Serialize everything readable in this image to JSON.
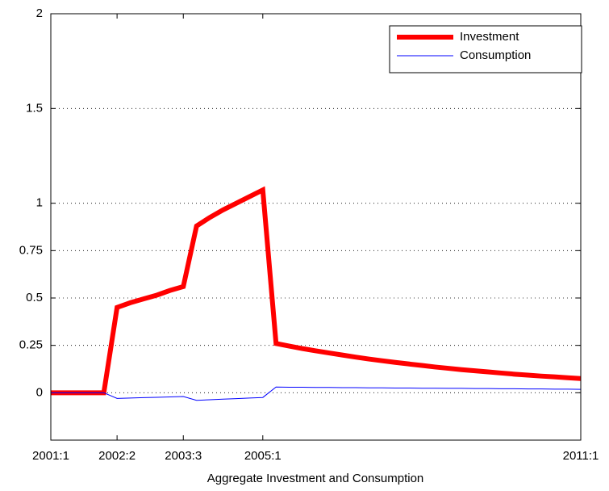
{
  "chart_data": {
    "type": "line",
    "xlabel": "Aggregate Investment and Consumption",
    "categories": [
      "2001:1",
      null,
      null,
      null,
      null,
      "2002:2",
      null,
      null,
      null,
      null,
      "2003:3",
      null,
      null,
      null,
      null,
      null,
      "2005:1",
      null,
      null,
      null,
      null,
      null,
      null,
      null,
      null,
      null,
      null,
      null,
      null,
      null,
      null,
      null,
      null,
      null,
      null,
      null,
      null,
      null,
      null,
      null,
      "2011:1"
    ],
    "series": [
      {
        "name": "Investment",
        "color": "#ff0000",
        "line_width": 6,
        "values": [
          0,
          0,
          0,
          0,
          0,
          0.45,
          0.475,
          0.495,
          0.515,
          0.54,
          0.56,
          0.88,
          0.925,
          0.965,
          1.0,
          1.035,
          1.07,
          0.26,
          0.246,
          0.233,
          0.221,
          0.21,
          0.199,
          0.188,
          0.178,
          0.169,
          0.16,
          0.152,
          0.144,
          0.136,
          0.129,
          0.122,
          0.116,
          0.11,
          0.104,
          0.098,
          0.093,
          0.088,
          0.084,
          0.079,
          0.075
        ]
      },
      {
        "name": "Consumption",
        "color": "#0000ff",
        "line_width": 1,
        "values": [
          0,
          0,
          0,
          0,
          0,
          -0.03,
          -0.028,
          -0.026,
          -0.024,
          -0.022,
          -0.02,
          -0.04,
          -0.037,
          -0.034,
          -0.031,
          -0.028,
          -0.025,
          0.03,
          0.029,
          0.029,
          0.028,
          0.028,
          0.027,
          0.027,
          0.026,
          0.026,
          0.025,
          0.025,
          0.024,
          0.024,
          0.023,
          0.023,
          0.022,
          0.022,
          0.021,
          0.021,
          0.02,
          0.02,
          0.019,
          0.019,
          0.018
        ]
      }
    ],
    "ylim": [
      -0.25,
      2
    ],
    "yticks": [
      0,
      0.25,
      0.5,
      0.75,
      1,
      1.5,
      2
    ],
    "grid": true,
    "legend": "upper right"
  }
}
